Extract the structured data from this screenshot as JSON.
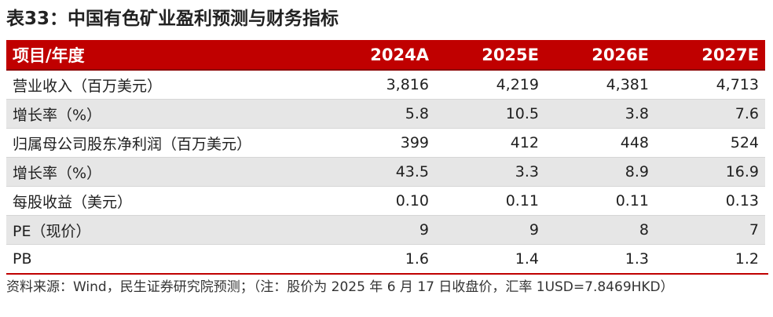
{
  "title": "表33：中国有色矿业盈利预测与财务指标",
  "table": {
    "headers": [
      "项目/年度",
      "2024A",
      "2025E",
      "2026E",
      "2027E"
    ],
    "rows": [
      {
        "label": "营业收入（百万美元）",
        "values": [
          "3,816",
          "4,219",
          "4,381",
          "4,713"
        ]
      },
      {
        "label": "增长率（%）",
        "values": [
          "5.8",
          "10.5",
          "3.8",
          "7.6"
        ]
      },
      {
        "label": "归属母公司股东净利润（百万美元）",
        "values": [
          "399",
          "412",
          "448",
          "524"
        ]
      },
      {
        "label": "增长率（%）",
        "values": [
          "43.5",
          "3.3",
          "8.9",
          "16.9"
        ]
      },
      {
        "label": "每股收益（美元）",
        "values": [
          "0.10",
          "0.11",
          "0.11",
          "0.13"
        ]
      },
      {
        "label": "PE（现价）",
        "values": [
          "9",
          "9",
          "8",
          "7"
        ]
      },
      {
        "label": "PB",
        "values": [
          "1.6",
          "1.4",
          "1.3",
          "1.2"
        ]
      }
    ]
  },
  "footnote": "资料来源：Wind，民生证券研究院预测；（注：股价为 2025 年 6 月 17 日收盘价，汇率 1USD=7.8469HKD）",
  "colors": {
    "header_bg": "#c00000",
    "header_text": "#ffffff",
    "alt_row_bg": "#e6e6e6"
  }
}
